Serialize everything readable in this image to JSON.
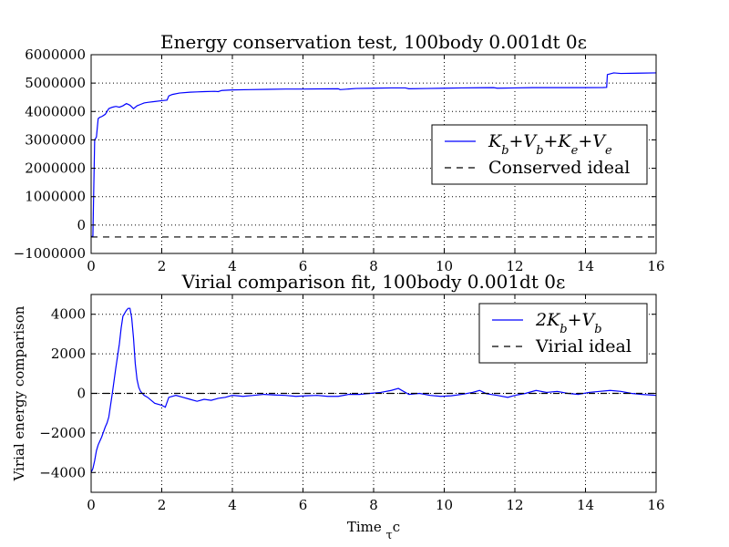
{
  "chart_data": [
    {
      "type": "line",
      "title": "Energy conservation test, 100body 0.001dt 0ε",
      "xlabel": "",
      "ylabel": "",
      "xlim": [
        0,
        16
      ],
      "ylim": [
        -1000000,
        6000000
      ],
      "xticks": [
        "0",
        "2",
        "4",
        "6",
        "8",
        "10",
        "12",
        "14",
        "16"
      ],
      "yticks": [
        "−1000000",
        "0",
        "1000000",
        "2000000",
        "3000000",
        "4000000",
        "5000000",
        "6000000"
      ],
      "grid": true,
      "legend_position": "center-right",
      "colors": {
        "series": "#0000ff",
        "ideal": "#000000"
      },
      "series": [
        {
          "name": "Kb+Vb+Ke+Ve",
          "name_parts": [
            "K",
            "b",
            "+V",
            "b",
            "+K",
            "e",
            "+V",
            "e"
          ],
          "color": "#0000ff",
          "style": "solid",
          "x": [
            0,
            0.05,
            0.1,
            0.15,
            0.2,
            0.25,
            0.3,
            0.4,
            0.5,
            0.6,
            0.7,
            0.8,
            0.9,
            1.0,
            1.1,
            1.2,
            1.3,
            1.4,
            1.5,
            1.6,
            1.8,
            2.0,
            2.15,
            2.2,
            2.3,
            2.5,
            2.8,
            3.0,
            3.2,
            3.5,
            3.6,
            3.7,
            4.0,
            4.5,
            5.0,
            5.5,
            6.0,
            6.5,
            7.0,
            7.05,
            7.5,
            8.0,
            8.5,
            8.9,
            9.0,
            9.5,
            10.0,
            10.5,
            11.0,
            11.4,
            11.5,
            12.0,
            12.5,
            13.0,
            13.5,
            14.0,
            14.5,
            14.6,
            14.62,
            14.8,
            15.0,
            15.5,
            16.0
          ],
          "y": [
            -400000,
            -400000,
            3000000,
            3100000,
            3750000,
            3800000,
            3820000,
            3900000,
            4100000,
            4150000,
            4180000,
            4150000,
            4200000,
            4280000,
            4220000,
            4100000,
            4200000,
            4250000,
            4300000,
            4320000,
            4350000,
            4380000,
            4400000,
            4550000,
            4600000,
            4650000,
            4680000,
            4690000,
            4700000,
            4710000,
            4700000,
            4740000,
            4760000,
            4770000,
            4780000,
            4790000,
            4790000,
            4795000,
            4800000,
            4770000,
            4810000,
            4820000,
            4830000,
            4830000,
            4800000,
            4810000,
            4820000,
            4830000,
            4835000,
            4840000,
            4820000,
            4830000,
            4840000,
            4840000,
            4840000,
            4840000,
            4845000,
            4850000,
            5300000,
            5360000,
            5340000,
            5350000,
            5360000
          ]
        },
        {
          "name": "Conserved ideal",
          "color": "#000000",
          "style": "dashed",
          "x": [
            0,
            16
          ],
          "y": [
            -420000,
            -420000
          ]
        }
      ]
    },
    {
      "type": "line",
      "title": "Virial comparison fit, 100body 0.001dt 0ε",
      "xlabel": "Time τc",
      "xlabel_parts": [
        "Time ",
        "τ",
        "c"
      ],
      "ylabel": "Virial energy comparison",
      "xlim": [
        0,
        16
      ],
      "ylim": [
        -5000,
        5000
      ],
      "xticks": [
        "0",
        "2",
        "4",
        "6",
        "8",
        "10",
        "12",
        "14",
        "16"
      ],
      "yticks": [
        "−4000",
        "−2000",
        "0",
        "2000",
        "4000"
      ],
      "grid": true,
      "legend_position": "upper-right",
      "colors": {
        "series": "#0000ff",
        "ideal": "#000000"
      },
      "series": [
        {
          "name": "2Kb+Vb",
          "name_parts": [
            "2K",
            "b",
            "+V",
            "b"
          ],
          "color": "#0000ff",
          "style": "solid",
          "x": [
            0,
            0.05,
            0.1,
            0.15,
            0.2,
            0.3,
            0.4,
            0.45,
            0.5,
            0.6,
            0.7,
            0.8,
            0.85,
            0.9,
            1.0,
            1.05,
            1.1,
            1.15,
            1.2,
            1.25,
            1.3,
            1.35,
            1.4,
            1.5,
            1.6,
            1.8,
            2.0,
            2.1,
            2.2,
            2.4,
            2.6,
            2.8,
            3.0,
            3.2,
            3.4,
            3.6,
            3.8,
            4.0,
            4.3,
            4.6,
            4.9,
            5.2,
            5.5,
            5.8,
            6.1,
            6.4,
            6.7,
            7.0,
            7.3,
            7.6,
            7.9,
            8.2,
            8.5,
            8.7,
            9.0,
            9.3,
            9.6,
            9.9,
            10.2,
            10.5,
            10.8,
            11.0,
            11.2,
            11.5,
            11.8,
            12.0,
            12.3,
            12.6,
            12.9,
            13.2,
            13.5,
            13.8,
            14.1,
            14.4,
            14.7,
            15.0,
            15.3,
            15.6,
            16.0
          ],
          "y": [
            -4000,
            -3800,
            -3400,
            -2900,
            -2600,
            -2200,
            -1700,
            -1500,
            -1200,
            0,
            1300,
            2500,
            3300,
            3900,
            4200,
            4300,
            4300,
            3800,
            2800,
            1500,
            700,
            300,
            100,
            -100,
            -200,
            -500,
            -600,
            -700,
            -200,
            -100,
            -200,
            -300,
            -400,
            -300,
            -350,
            -250,
            -200,
            -100,
            -150,
            -100,
            -50,
            -80,
            -100,
            -150,
            -120,
            -100,
            -150,
            -150,
            -50,
            -50,
            0,
            50,
            150,
            250,
            -50,
            0,
            -100,
            -150,
            -120,
            -50,
            50,
            150,
            -20,
            -100,
            -200,
            -100,
            0,
            150,
            50,
            100,
            0,
            -50,
            50,
            100,
            150,
            100,
            0,
            -50,
            -100
          ]
        },
        {
          "name": "Virial ideal",
          "color": "#000000",
          "style": "dashed",
          "x": [
            0,
            16
          ],
          "y": [
            0,
            0
          ]
        }
      ]
    }
  ]
}
